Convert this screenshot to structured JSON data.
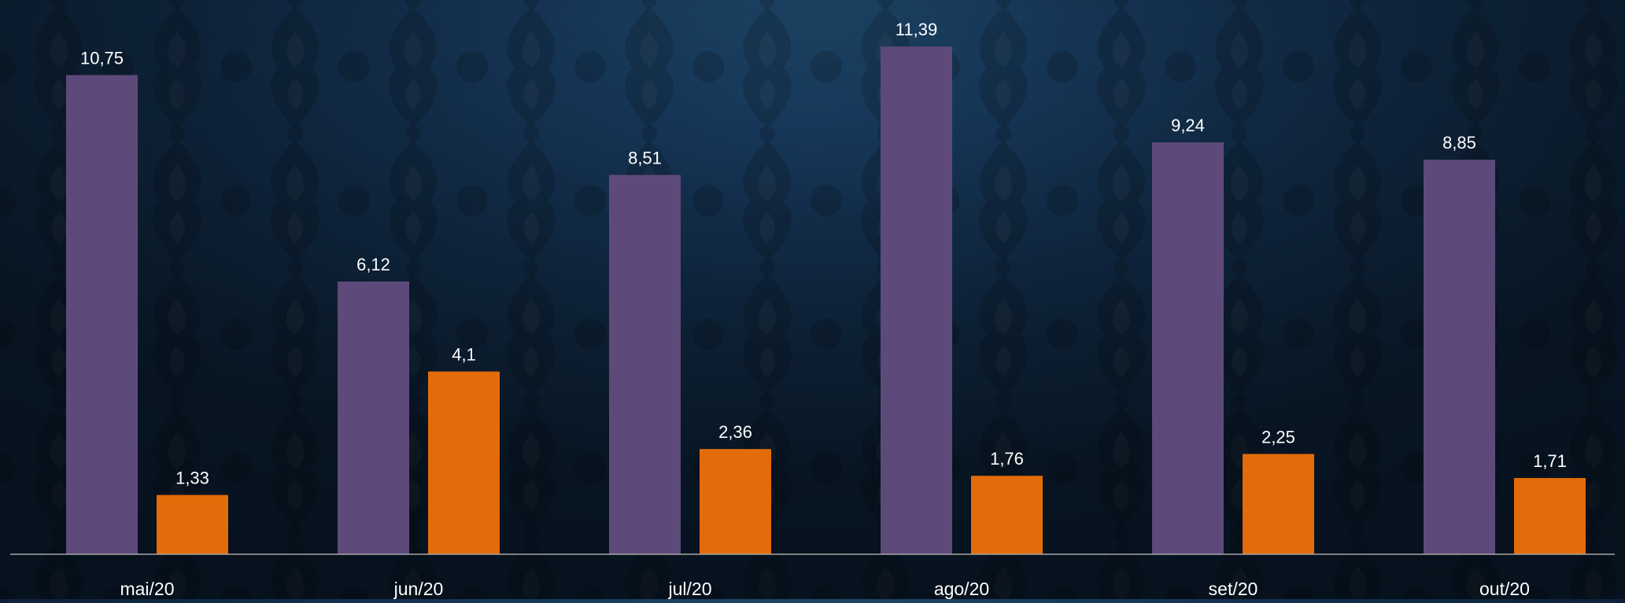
{
  "chart_data": {
    "type": "bar",
    "title": "",
    "xlabel": "",
    "ylabel": "",
    "categories": [
      "mai/20",
      "jun/20",
      "jul/20",
      "ago/20",
      "set/20",
      "out/20"
    ],
    "series": [
      {
        "color": "#5d4a7a",
        "values": [
          10.75,
          6.12,
          8.51,
          11.39,
          9.24,
          8.85
        ],
        "labels": [
          "10,75",
          "6,12",
          "8,51",
          "11,39",
          "9,24",
          "8,85"
        ]
      },
      {
        "color": "#e36c0a",
        "values": [
          1.33,
          4.1,
          2.36,
          1.76,
          2.25,
          1.71
        ],
        "labels": [
          "1,33",
          "4,1",
          "2,36",
          "1,76",
          "2,25",
          "1,71"
        ]
      }
    ],
    "ylim": [
      0,
      12
    ],
    "grid": false,
    "legend": "none",
    "axis_color": "#a6a6a6",
    "text_color": "#ffffff"
  }
}
